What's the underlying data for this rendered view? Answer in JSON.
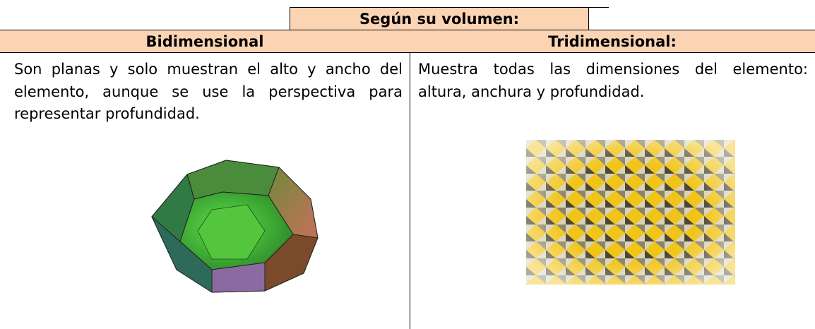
{
  "header": {
    "title": "Según su volumen:"
  },
  "table": {
    "headers": [
      "Bidimensional",
      "Tridimensional:"
    ],
    "cells": [
      "Son planas y solo muestran el alto y ancho del elemento, aunque se use la perspectiva para representar profundidad.",
      "Muestra todas las dimensiones del elemento: altura, anchura y profundidad."
    ]
  }
}
